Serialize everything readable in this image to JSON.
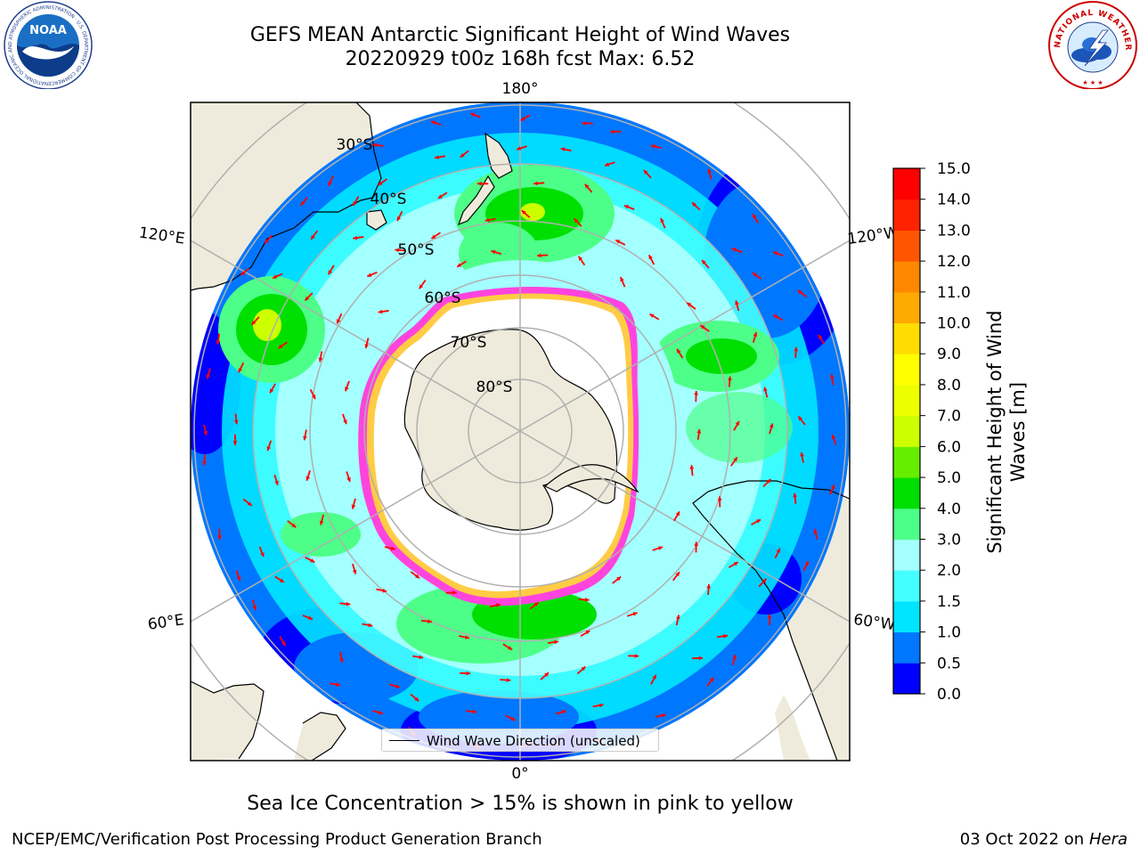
{
  "header": {
    "title_line1": "GEFS MEAN Antarctic Significant Height of Wind Waves",
    "title_line2": "20220929 t00z 168h fcst   Max: 6.52"
  },
  "logos": {
    "left": {
      "name": "noaa-logo",
      "text": "NOAA",
      "ring_text": "NATIONAL OCEANIC AND ATMOSPHERIC ADMINISTRATION · U.S. DEPARTMENT OF COMMERCE"
    },
    "right": {
      "name": "nws-logo",
      "ring_text": "NATIONAL WEATHER SERVICE"
    }
  },
  "map": {
    "projection": "south-polar-stereographic",
    "longitude_labels": {
      "top": "180°",
      "bottom": "0°",
      "upper_left": "120°E",
      "lower_left": "60°E",
      "upper_right": "120°W",
      "lower_right": "60°W"
    },
    "latitude_labels": [
      "30°S",
      "40°S",
      "50°S",
      "60°S",
      "70°S",
      "80°S"
    ],
    "legend_label": "Wind Wave Direction (unscaled)",
    "colors": {
      "land": "#efebdc",
      "grid": "#b0b0b0",
      "arrow": "#ff0000",
      "ice_edge": "#ff44dd",
      "ice_inner": "#ffcc44"
    }
  },
  "colorbar": {
    "title_line1": "Significant Height of Wind",
    "title_line2": "Waves [m]",
    "ticks": [
      "0.0",
      "0.5",
      "1.0",
      "1.5",
      "2.0",
      "3.0",
      "4.0",
      "5.0",
      "6.0",
      "7.0",
      "8.0",
      "9.0",
      "10.0",
      "11.0",
      "12.0",
      "13.0",
      "14.0",
      "15.0"
    ],
    "colors": [
      "#0000ff",
      "#0077ff",
      "#00e5ff",
      "#44ffff",
      "#a4ffff",
      "#4dff88",
      "#00e000",
      "#66ee00",
      "#ccff00",
      "#eeff00",
      "#ffff00",
      "#ffdd00",
      "#ffaa00",
      "#ff8800",
      "#ff5500",
      "#ff2200",
      "#ff0000"
    ]
  },
  "notes": {
    "ice": "Sea Ice Concentration > 15% is shown in pink to yellow"
  },
  "footer": {
    "left": "NCEP/EMC/Verification Post Processing Product Generation Branch",
    "date": "03 Oct 2022 on ",
    "host": "Hera"
  }
}
